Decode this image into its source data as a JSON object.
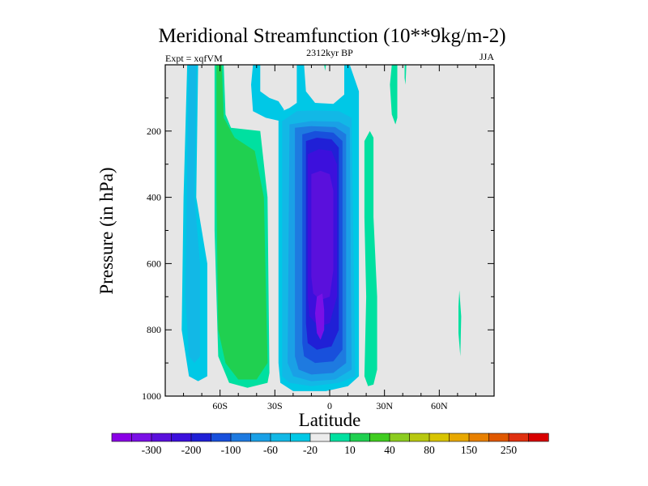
{
  "chart_data": {
    "type": "heatmap",
    "title": "Meridional Streamfunction (10**9kg/m-2)",
    "subtitle_left": "Expt = xqfVM",
    "subtitle_center": "2312kyr BP",
    "subtitle_right": "JJA",
    "xlabel": "Latitude",
    "ylabel": "Pressure (in hPa)",
    "xlim": [
      -90,
      90
    ],
    "ylim": [
      1000,
      0
    ],
    "x_ticks": [
      {
        "value": -60,
        "label": "60S"
      },
      {
        "value": -30,
        "label": "30S"
      },
      {
        "value": 0,
        "label": "0"
      },
      {
        "value": 30,
        "label": "30N"
      },
      {
        "value": 60,
        "label": "60N"
      }
    ],
    "y_ticks": [
      {
        "value": 200,
        "label": "200"
      },
      {
        "value": 400,
        "label": "400"
      },
      {
        "value": 600,
        "label": "600"
      },
      {
        "value": 800,
        "label": "800"
      },
      {
        "value": 1000,
        "label": "1000"
      }
    ],
    "background_color": "#e6e6e6",
    "colorbar": {
      "colors": [
        "#8a00e6",
        "#7a10e6",
        "#5a10dc",
        "#3c10dc",
        "#2020d6",
        "#1850dc",
        "#1e7ae0",
        "#1aa0e6",
        "#12b8e6",
        "#00c8e6",
        "#ececec",
        "#00e0a0",
        "#20d050",
        "#40cc20",
        "#8ccc20",
        "#b8c810",
        "#d8c400",
        "#e8a800",
        "#e88000",
        "#e05800",
        "#e03010",
        "#d80000"
      ],
      "labels": [
        {
          "after_index": 1,
          "text": "-300"
        },
        {
          "after_index": 3,
          "text": "-200"
        },
        {
          "after_index": 5,
          "text": "-100"
        },
        {
          "after_index": 7,
          "text": "-60"
        },
        {
          "after_index": 9,
          "text": "-20"
        },
        {
          "after_index": 11,
          "text": "10"
        },
        {
          "after_index": 13,
          "text": "40"
        },
        {
          "after_index": 15,
          "text": "80"
        },
        {
          "after_index": 17,
          "text": "150"
        },
        {
          "after_index": 19,
          "text": "250"
        }
      ]
    },
    "contour_regions": [
      {
        "name": "sh-polar-cell-outer",
        "level": -20,
        "color": "#00c8e6",
        "points": [
          [
            -78,
            0
          ],
          [
            -72,
            0
          ],
          [
            -73,
            400
          ],
          [
            -67,
            600
          ],
          [
            -67,
            940
          ],
          [
            -72,
            955
          ],
          [
            -77,
            940
          ],
          [
            -81,
            800
          ],
          [
            -80,
            400
          ]
        ]
      },
      {
        "name": "sh-polar-cell-inner",
        "level": -60,
        "color": "#12b8e6",
        "points": [
          [
            -77,
            0
          ],
          [
            -73,
            0
          ],
          [
            -74,
            400
          ],
          [
            -71,
            600
          ],
          [
            -71,
            880
          ],
          [
            -74,
            900
          ],
          [
            -77,
            880
          ],
          [
            -79,
            700
          ],
          [
            -78,
            300
          ]
        ]
      },
      {
        "name": "sh-ferrel-outer",
        "level": 10,
        "color": "#00e0a0",
        "points": [
          [
            -63,
            0
          ],
          [
            -58,
            0
          ],
          [
            -57,
            150
          ],
          [
            -54,
            190
          ],
          [
            -38,
            200
          ],
          [
            -34,
            400
          ],
          [
            -33,
            930
          ],
          [
            -34,
            960
          ],
          [
            -45,
            975
          ],
          [
            -55,
            960
          ],
          [
            -61,
            880
          ],
          [
            -63,
            500
          ]
        ]
      },
      {
        "name": "sh-ferrel-inner",
        "level": 40,
        "color": "#20d050",
        "points": [
          [
            -62,
            0
          ],
          [
            -59,
            0
          ],
          [
            -58,
            160
          ],
          [
            -52,
            220
          ],
          [
            -41,
            260
          ],
          [
            -36,
            400
          ],
          [
            -34,
            900
          ],
          [
            -40,
            950
          ],
          [
            -50,
            950
          ],
          [
            -57,
            900
          ],
          [
            -61,
            800
          ],
          [
            -62,
            400
          ]
        ]
      },
      {
        "name": "mid-upper-tongue",
        "level": -20,
        "color": "#00c8e6",
        "points": [
          [
            -42,
            0
          ],
          [
            -38,
            0
          ],
          [
            -38,
            80
          ],
          [
            -33,
            100
          ],
          [
            -28,
            110
          ],
          [
            -25,
            135
          ],
          [
            -27,
            170
          ],
          [
            -35,
            160
          ],
          [
            -42,
            140
          ],
          [
            -43,
            60
          ]
        ]
      },
      {
        "name": "hadley-cell-level-20",
        "level": -20,
        "color": "#00c8e6",
        "points": [
          [
            -28,
            170
          ],
          [
            -26,
            140
          ],
          [
            -22,
            130
          ],
          [
            -18,
            115
          ],
          [
            -18,
            0
          ],
          [
            -14,
            0
          ],
          [
            -13,
            80
          ],
          [
            -8,
            115
          ],
          [
            2,
            118
          ],
          [
            8,
            90
          ],
          [
            8,
            0
          ],
          [
            11,
            0
          ],
          [
            16,
            80
          ],
          [
            16,
            940
          ],
          [
            10,
            970
          ],
          [
            -2,
            985
          ],
          [
            -20,
            985
          ],
          [
            -27,
            960
          ],
          [
            -28,
            900
          ]
        ]
      },
      {
        "name": "hadley-cell-level-60",
        "level": -60,
        "color": "#12b8e6",
        "points": [
          [
            -26,
            170
          ],
          [
            -18,
            140
          ],
          [
            -8,
            138
          ],
          [
            5,
            140
          ],
          [
            12,
            160
          ],
          [
            14,
            940
          ],
          [
            5,
            960
          ],
          [
            -10,
            970
          ],
          [
            -22,
            960
          ],
          [
            -26,
            940
          ]
        ]
      },
      {
        "name": "hadley-cell-level-100",
        "level": -100,
        "color": "#1aa0e6",
        "points": [
          [
            -22,
            180
          ],
          [
            -10,
            170
          ],
          [
            5,
            172
          ],
          [
            11,
            190
          ],
          [
            12,
            920
          ],
          [
            3,
            950
          ],
          [
            -10,
            955
          ],
          [
            -20,
            940
          ],
          [
            -23,
            900
          ]
        ]
      },
      {
        "name": "hadley-cell-level-150",
        "level": -150,
        "color": "#1e7ae0",
        "points": [
          [
            -19,
            190
          ],
          [
            -10,
            185
          ],
          [
            3,
            188
          ],
          [
            9,
            210
          ],
          [
            9,
            900
          ],
          [
            2,
            930
          ],
          [
            -10,
            935
          ],
          [
            -17,
            920
          ],
          [
            -19,
            880
          ]
        ]
      },
      {
        "name": "hadley-cell-level-200",
        "level": -200,
        "color": "#1850dc",
        "points": [
          [
            -15,
            210
          ],
          [
            -8,
            200
          ],
          [
            2,
            205
          ],
          [
            7,
            230
          ],
          [
            7,
            860
          ],
          [
            2,
            895
          ],
          [
            -8,
            900
          ],
          [
            -14,
            880
          ],
          [
            -15,
            840
          ]
        ]
      },
      {
        "name": "hadley-cell-level-250",
        "level": -250,
        "color": "#2020d6",
        "points": [
          [
            -13,
            230
          ],
          [
            -7,
            220
          ],
          [
            1,
            225
          ],
          [
            5,
            250
          ],
          [
            5,
            800
          ],
          [
            1,
            850
          ],
          [
            -7,
            860
          ],
          [
            -12,
            840
          ],
          [
            -13,
            780
          ]
        ]
      },
      {
        "name": "hadley-cell-level-300",
        "level": -300,
        "color": "#3c10dc",
        "points": [
          [
            -12,
            270
          ],
          [
            -6,
            255
          ],
          [
            1,
            260
          ],
          [
            4,
            300
          ],
          [
            4,
            700
          ],
          [
            0,
            780
          ],
          [
            -6,
            790
          ],
          [
            -11,
            760
          ],
          [
            -12,
            700
          ]
        ]
      },
      {
        "name": "hadley-cell-core",
        "level": -350,
        "color": "#5a10dc",
        "points": [
          [
            -10,
            330
          ],
          [
            -5,
            320
          ],
          [
            0,
            330
          ],
          [
            2,
            380
          ],
          [
            2,
            620
          ],
          [
            0,
            700
          ],
          [
            -5,
            710
          ],
          [
            -9,
            690
          ],
          [
            -10,
            640
          ]
        ]
      },
      {
        "name": "hadley-cell-peak",
        "level": -400,
        "color": "#7a10e6",
        "points": [
          [
            -7,
            700
          ],
          [
            -4,
            690
          ],
          [
            -3,
            740
          ],
          [
            -3,
            800
          ],
          [
            -5,
            830
          ],
          [
            -7,
            810
          ],
          [
            -8,
            750
          ]
        ]
      },
      {
        "name": "nh-thin-strip",
        "level": 10,
        "color": "#00e0a0",
        "points": [
          [
            19,
            230
          ],
          [
            22,
            200
          ],
          [
            24,
            220
          ],
          [
            24,
            460
          ],
          [
            26,
            700
          ],
          [
            26,
            920
          ],
          [
            24,
            965
          ],
          [
            21,
            970
          ],
          [
            19,
            940
          ],
          [
            20,
            700
          ],
          [
            19,
            460
          ]
        ]
      },
      {
        "name": "nh-upper-strip",
        "level": 10,
        "color": "#00e0a0",
        "points": [
          [
            34,
            0
          ],
          [
            37,
            0
          ],
          [
            37,
            160
          ],
          [
            36,
            180
          ],
          [
            34,
            150
          ],
          [
            33,
            60
          ]
        ]
      },
      {
        "name": "nh-upper-strip-small",
        "level": 10,
        "color": "#00e0a0",
        "points": [
          [
            41,
            0
          ],
          [
            42,
            0
          ],
          [
            41.5,
            60
          ],
          [
            41,
            40
          ]
        ]
      },
      {
        "name": "equator-sliver",
        "level": 10,
        "color": "#00e0a0",
        "points": [
          [
            -3,
            0
          ],
          [
            -2,
            0
          ],
          [
            -2.5,
            18
          ]
        ]
      },
      {
        "name": "nh-high-lat-sliver",
        "level": 10,
        "color": "#00e0a0",
        "points": [
          [
            71,
            680
          ],
          [
            72,
            760
          ],
          [
            71.5,
            880
          ],
          [
            70.5,
            810
          ],
          [
            70.5,
            730
          ]
        ]
      }
    ]
  }
}
